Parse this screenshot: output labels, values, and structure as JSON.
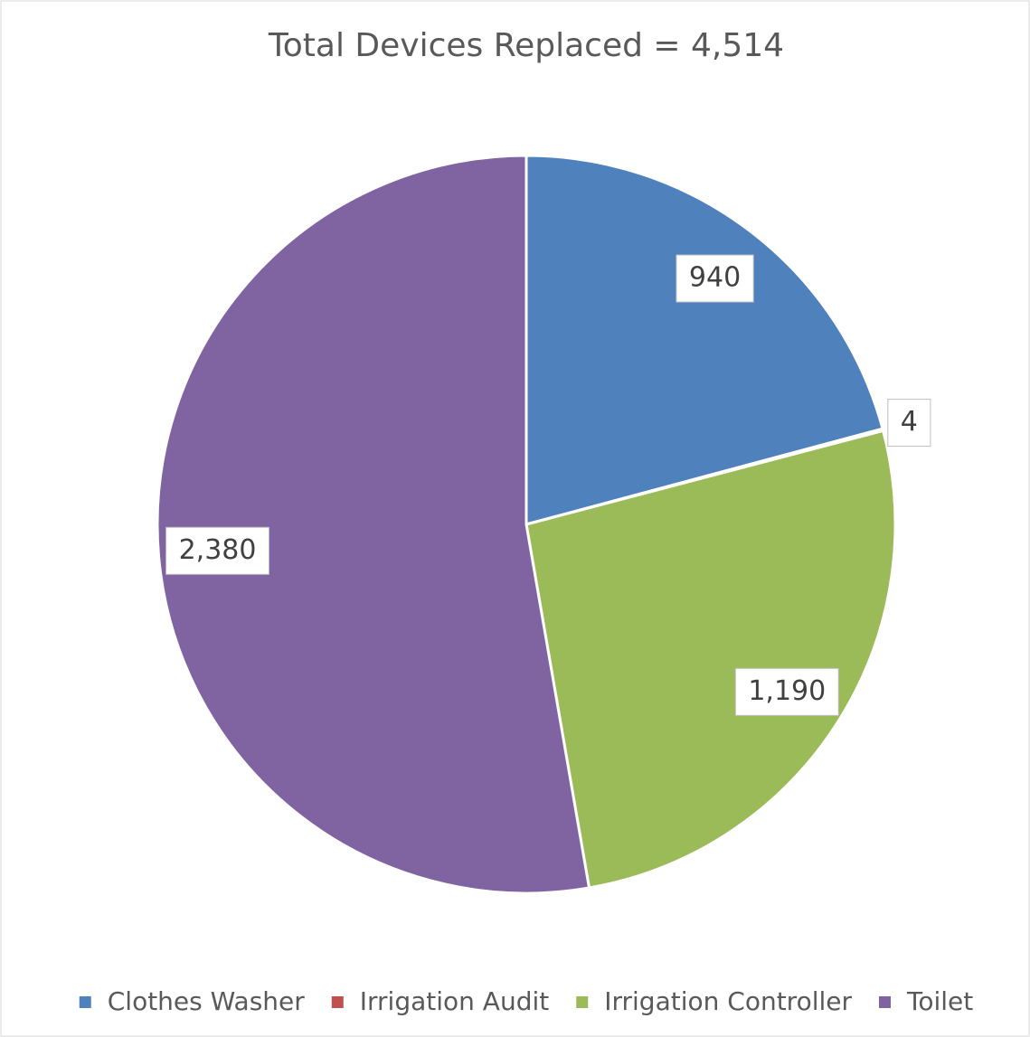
{
  "chart_data": {
    "type": "pie",
    "title": "Total Devices Replaced = 4,514",
    "categories": [
      "Clothes Washer",
      "Irrigation Audit",
      "Irrigation Controller",
      "Toilet"
    ],
    "values": [
      940,
      4,
      1190,
      2380
    ],
    "value_labels": [
      "940",
      "4",
      "1,190",
      "2,380"
    ],
    "colors": [
      "#4f81bd",
      "#c0504d",
      "#9bbb59",
      "#8064a2"
    ],
    "legend": "bottom"
  }
}
